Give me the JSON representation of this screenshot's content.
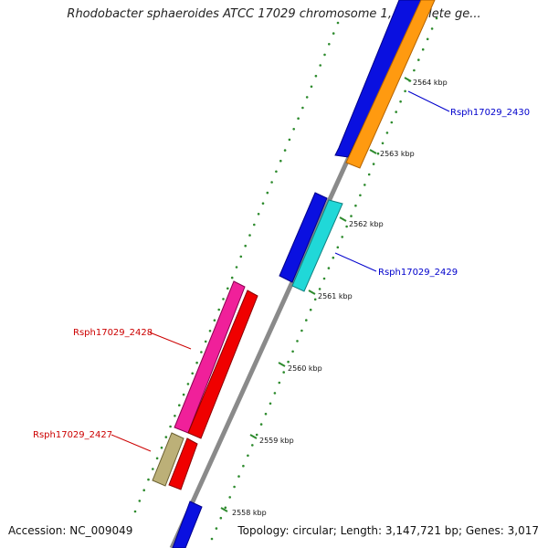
{
  "title": "Rhodobacter sphaeroides ATCC 17029 chromosome 1, complete ge...",
  "accession": "Accession: NC_009049",
  "summary": "Topology: circular; Length: 3,147,721 bp; Genes: 3,017",
  "ticks": [
    "2564 kbp",
    "2563 kbp",
    "2562 kbp",
    "2561 kbp",
    "2560 kbp",
    "2559 kbp",
    "2558 kbp"
  ],
  "gene_labels": [
    {
      "text": "Rsph17029_2430",
      "color": "#0000cc"
    },
    {
      "text": "Rsph17029_2429",
      "color": "#0000cc"
    },
    {
      "text": "Rsph17029_2428",
      "color": "#cc0000"
    },
    {
      "text": "Rsph17029_2427",
      "color": "#cc0000"
    }
  ],
  "colors": {
    "backbone": "#8a8a8a",
    "dots": "#2e8b2e",
    "blue_cds": "#0a10e0",
    "orange_cds": "#ff9a10",
    "cyan_cds": "#20d8d8",
    "magenta_cds": "#f0209a",
    "red_cds": "#f00000",
    "olive_cds": "#bcb078"
  }
}
